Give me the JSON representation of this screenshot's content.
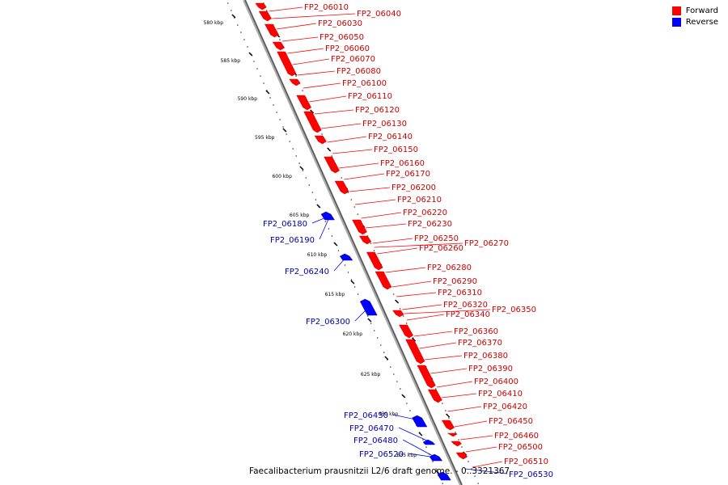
{
  "legend": {
    "forward_label": "Forward",
    "reverse_label": "Reverse",
    "forward_color": "#ff0000",
    "reverse_color": "#0000ff"
  },
  "caption": "Faecalibacterium prausnitzii L2/6 draft genome. - 0..3321367",
  "kbp_ticks": [
    "580 kbp",
    "585 kbp",
    "590 kbp",
    "595 kbp",
    "600 kbp",
    "605 kbp",
    "610 kbp",
    "615 kbp",
    "620 kbp",
    "625 kbp",
    "630 kbp",
    "635 kbp"
  ],
  "forward_genes": [
    "FP2_06010",
    "FP2_06040",
    "FP2_06030",
    "FP2_06050",
    "FP2_06060",
    "FP2_06070",
    "FP2_06080",
    "FP2_06100",
    "FP2_06110",
    "FP2_06120",
    "FP2_06130",
    "FP2_06140",
    "FP2_06150",
    "FP2_06160",
    "FP2_06170",
    "FP2_06200",
    "FP2_06210",
    "FP2_06220",
    "FP2_06230",
    "FP2_06250",
    "FP2_06260",
    "FP2_06270",
    "FP2_06280",
    "FP2_06290",
    "FP2_06310",
    "FP2_06320",
    "FP2_06340",
    "FP2_06350",
    "FP2_06360",
    "FP2_06370",
    "FP2_06380",
    "FP2_06390",
    "FP2_06400",
    "FP2_06410",
    "FP2_06420",
    "FP2_06450",
    "FP2_06460",
    "FP2_06500",
    "FP2_06510"
  ],
  "reverse_genes": [
    "FP2_06180",
    "FP2_06190",
    "FP2_06240",
    "FP2_06300",
    "FP2_06430",
    "FP2_06470",
    "FP2_06480",
    "FP2_06520",
    "FP2_06530"
  ]
}
